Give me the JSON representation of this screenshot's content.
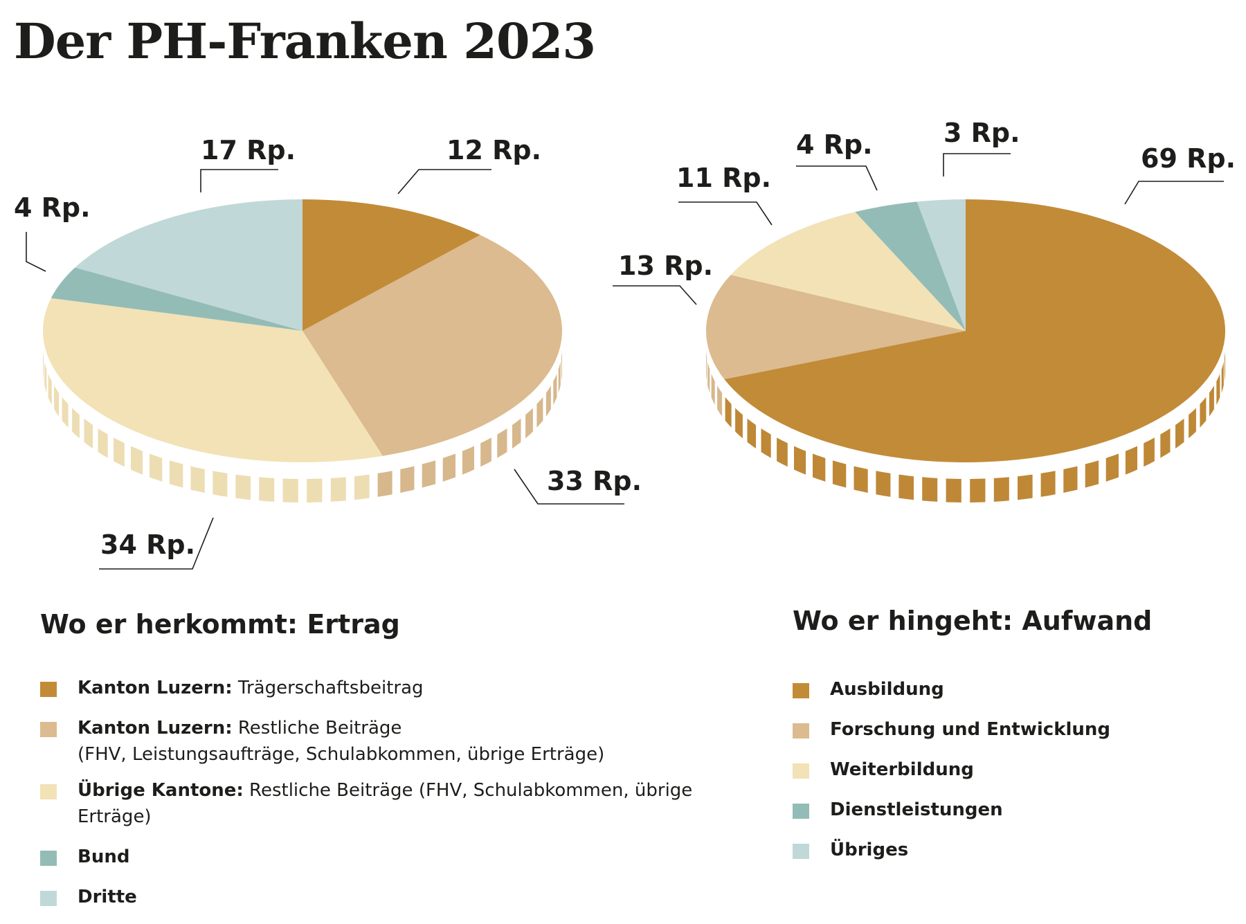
{
  "title": "Der PH-Franken 2023",
  "colors": {
    "gold": "#c28b38",
    "tan": "#dbbb8f",
    "cream": "#f2e2b6",
    "teal": "#93bcb6",
    "lightblue": "#c0d8d8"
  },
  "chart_data": [
    {
      "type": "pie",
      "title": "Wo er herkommt: Ertrag",
      "unit": "Rp.",
      "slices": [
        {
          "label": "Kanton Luzern: Trägerschaftsbeitrag",
          "value": 12,
          "value_label": "12 Rp.",
          "color": "#c28b38"
        },
        {
          "label": "Kanton Luzern: Restliche Beiträge (FHV, Leistungsaufträge, Schulabkommen, übrige Erträge)",
          "value": 33,
          "value_label": "33 Rp.",
          "color": "#dbbb8f"
        },
        {
          "label": "Übrige Kantone: Restliche Beiträge (FHV, Schulabkommen, übrige Erträge)",
          "value": 34,
          "value_label": "34 Rp.",
          "color": "#f2e2b6"
        },
        {
          "label": "Bund",
          "value": 4,
          "value_label": "4 Rp.",
          "color": "#93bcb6"
        },
        {
          "label": "Dritte",
          "value": 17,
          "value_label": "17 Rp.",
          "color": "#c0d8d8"
        }
      ]
    },
    {
      "type": "pie",
      "title": "Wo er hingeht: Aufwand",
      "unit": "Rp.",
      "slices": [
        {
          "label": "Ausbildung",
          "value": 69,
          "value_label": "69 Rp.",
          "color": "#c28b38"
        },
        {
          "label": "Forschung und Entwicklung",
          "value": 13,
          "value_label": "13 Rp.",
          "color": "#dbbb8f"
        },
        {
          "label": "Weiterbildung",
          "value": 11,
          "value_label": "11 Rp.",
          "color": "#f2e2b6"
        },
        {
          "label": "Dienstleistungen",
          "value": 4,
          "value_label": "4 Rp.",
          "color": "#93bcb6"
        },
        {
          "label": "Übriges",
          "value": 3,
          "value_label": "3 Rp.",
          "color": "#c0d8d8"
        }
      ]
    }
  ],
  "legend_left": {
    "heading": "Wo er herkommt: Ertrag",
    "items": [
      {
        "bold": "Kanton Luzern:",
        "text": " Trägerschaftsbeitrag",
        "sub": ""
      },
      {
        "bold": "Kanton Luzern:",
        "text": " Restliche Beiträge",
        "sub": "(FHV, Leistungsaufträge, Schulabkommen, übrige Erträge)"
      },
      {
        "bold": "Übrige Kantone:",
        "text": " Restliche Beiträge (FHV, Schulabkommen, übrige Erträge)",
        "sub": ""
      },
      {
        "bold": "Bund",
        "text": "",
        "sub": ""
      },
      {
        "bold": "Dritte",
        "text": "",
        "sub": ""
      }
    ]
  },
  "legend_right": {
    "heading": "Wo er hingeht: Aufwand",
    "items": [
      {
        "bold": "Ausbildung"
      },
      {
        "bold": "Forschung und Entwicklung"
      },
      {
        "bold": "Weiterbildung"
      },
      {
        "bold": "Dienstleistungen"
      },
      {
        "bold": "Übriges"
      }
    ]
  }
}
